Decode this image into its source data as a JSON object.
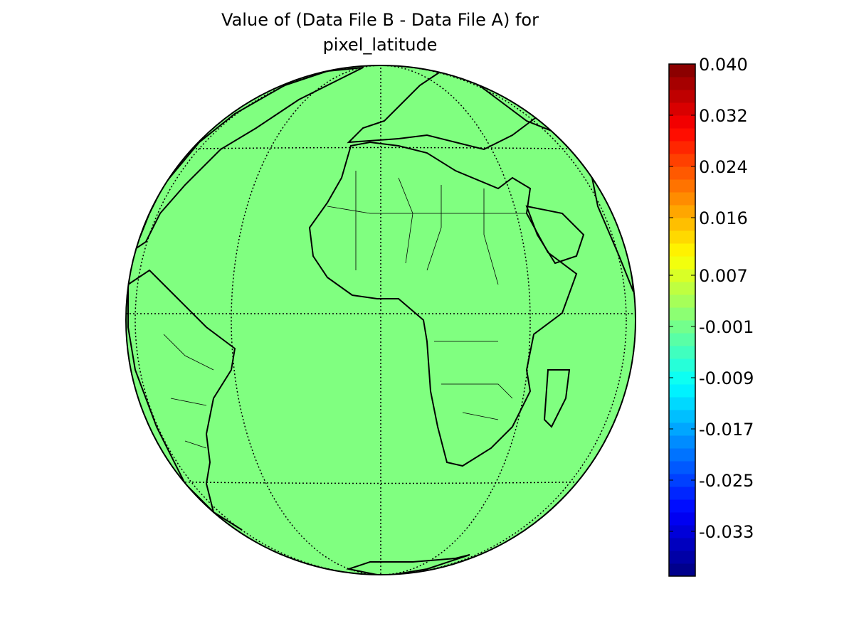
{
  "map": {
    "title_lines": [
      "Value of (Data File B - Data File A) for",
      "pixel_latitude"
    ],
    "field_value": 0,
    "colorbar": {
      "colormap": "jet",
      "clim": [
        -0.04,
        0.04
      ],
      "ticks": [
        {
          "value": 0.04,
          "label": "0.040"
        },
        0.032,
        0.024,
        0.016,
        0.007,
        -0.001,
        -0.009,
        -0.017,
        -0.025,
        -0.033
      ]
    }
  }
}
